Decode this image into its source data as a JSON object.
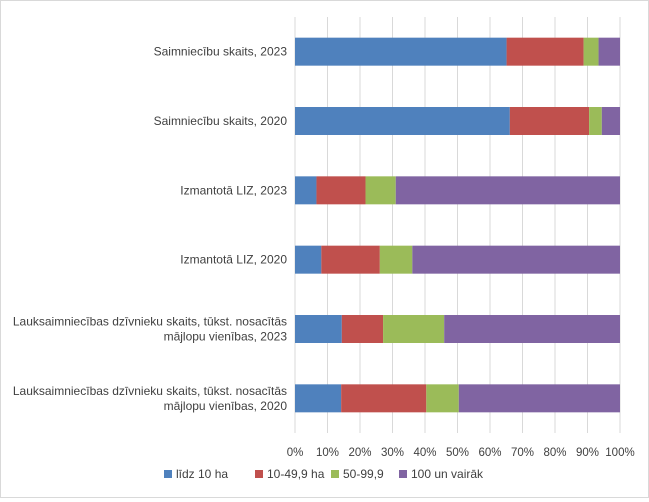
{
  "chart_data": {
    "type": "bar",
    "orientation": "horizontal",
    "stacked": "percent",
    "categories": [
      "Saimniecību skaits, 2023",
      "Saimniecību skaits, 2020",
      "Izmantotā LIZ, 2023",
      "Izmantotā LIZ, 2020",
      "Lauksaimniecības dzīvnieku skaits, tūkst. nosacītās mājlopu vienības, 2023",
      "Lauksaimniecības dzīvnieku skaits, tūkst. nosacītās mājlopu vienības, 2020"
    ],
    "category_lines": [
      [
        "Saimniecību skaits, 2023"
      ],
      [
        "Saimniecību skaits, 2020"
      ],
      [
        "Izmantotā LIZ, 2023"
      ],
      [
        "Izmantotā LIZ, 2020"
      ],
      [
        "Lauksaimniecības dzīvnieku skaits, tūkst. nosacītās",
        "mājlopu vienības, 2023"
      ],
      [
        "Lauksaimniecības dzīvnieku skaits, tūkst. nosacītās",
        "mājlopu vienības, 2020"
      ]
    ],
    "series": [
      {
        "name": "līdz 10 ha",
        "color": "#4f81bd",
        "values": [
          65.1,
          66.1,
          6.6,
          8.1,
          14.4,
          14.2
        ]
      },
      {
        "name": "10-49,9 ha",
        "color": "#c0504d",
        "values": [
          23.7,
          24.4,
          15.1,
          18.0,
          12.7,
          26.2
        ]
      },
      {
        "name": "50-99,9",
        "color": "#9bbb59",
        "values": [
          4.6,
          3.9,
          9.3,
          10.0,
          18.8,
          10.0
        ]
      },
      {
        "name": "100 un vairāk",
        "color": "#8064a2",
        "values": [
          6.6,
          5.6,
          69.0,
          63.9,
          54.1,
          49.6
        ]
      }
    ],
    "xlim": [
      0,
      100
    ],
    "xticks": [
      "0%",
      "10%",
      "20%",
      "30%",
      "40%",
      "50%",
      "60%",
      "70%",
      "80%",
      "90%",
      "100%"
    ],
    "grid": "vertical",
    "legend": "bottom",
    "title": "",
    "xlabel": "",
    "ylabel": ""
  }
}
